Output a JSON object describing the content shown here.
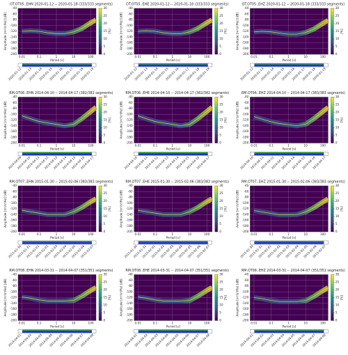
{
  "chart_data": [
    {
      "type": "line",
      "title": "OT.OT05..EHN  2020-01-12 -- 2020-01-18  (333/333 segments)",
      "xlabel": "Period [s]",
      "ylabel": "Amplitude [m²/s⁴/Hz] [dB]",
      "xlog": true,
      "xlim": [
        0.006,
        200
      ],
      "ylim": [
        -200,
        -40
      ],
      "xticks": [
        0.01,
        0.1,
        1,
        10,
        100
      ],
      "yticks": [
        -40,
        -60,
        -80,
        -100,
        -120,
        -140,
        -160,
        -180,
        -200
      ],
      "grid": true,
      "clim": [
        0,
        30
      ],
      "cticks": [
        0,
        5,
        10,
        15,
        20,
        25,
        30
      ],
      "clabel": "[%]",
      "x": [
        0.01,
        0.03,
        0.1,
        0.3,
        1,
        3,
        10,
        30,
        100,
        200
      ],
      "values": [
        -120,
        -118,
        -120,
        -125,
        -128,
        -128,
        -122,
        -110,
        -90,
        -80
      ],
      "time_labels": [
        "2020-01-12",
        "2020-01-13",
        "2020-01-14",
        "2020-01-15",
        "2020-01-16",
        "2020-01-17",
        "2020-01-18",
        "2020-01-19"
      ]
    },
    {
      "type": "line",
      "title": "OT.OT05..EHE  2020-01-12 -- 2020-01-18  (333/333 segments)",
      "xlabel": "Period [s]",
      "ylabel": "Amplitude [m²/s⁴/Hz] [dB]",
      "xlog": true,
      "xlim": [
        0.006,
        200
      ],
      "ylim": [
        -200,
        -40
      ],
      "xticks": [
        0.01,
        0.1,
        1,
        10,
        100
      ],
      "yticks": [
        -40,
        -60,
        -80,
        -100,
        -120,
        -140,
        -160,
        -180,
        -200
      ],
      "grid": true,
      "clim": [
        0,
        30
      ],
      "cticks": [
        0,
        5,
        10,
        15,
        20,
        25,
        30
      ],
      "clabel": "[%]",
      "x": [
        0.01,
        0.03,
        0.1,
        0.3,
        1,
        3,
        10,
        30,
        100,
        200
      ],
      "values": [
        -120,
        -118,
        -120,
        -125,
        -128,
        -128,
        -122,
        -110,
        -90,
        -80
      ],
      "time_labels": [
        "2020-01-12",
        "2020-01-13",
        "2020-01-14",
        "2020-01-15",
        "2020-01-16",
        "2020-01-17",
        "2020-01-18",
        "2020-01-19"
      ]
    },
    {
      "type": "line",
      "title": "OT.OT05..EHZ  2020-01-12 -- 2020-01-18  (333/333 segments)",
      "xlabel": "Period [s]",
      "ylabel": "Amplitude [m²/s⁴/Hz] [dB]",
      "xlog": true,
      "xlim": [
        0.006,
        200
      ],
      "ylim": [
        -200,
        -40
      ],
      "xticks": [
        0.01,
        0.1,
        1,
        10,
        100
      ],
      "yticks": [
        -40,
        -60,
        -80,
        -100,
        -120,
        -140,
        -160,
        -180,
        -200
      ],
      "grid": true,
      "clim": [
        0,
        30
      ],
      "cticks": [
        0,
        5,
        10,
        15,
        20,
        25,
        30
      ],
      "clabel": "[%]",
      "x": [
        0.01,
        0.03,
        0.1,
        0.3,
        1,
        3,
        10,
        30,
        100,
        200
      ],
      "values": [
        -122,
        -120,
        -122,
        -126,
        -130,
        -130,
        -124,
        -112,
        -92,
        -82
      ],
      "time_labels": [
        "2020-01-12",
        "2020-01-13",
        "2020-01-14",
        "2020-01-15",
        "2020-01-16",
        "2020-01-17",
        "2020-01-18",
        "2020-01-19"
      ]
    },
    {
      "type": "line",
      "title": "RM.OT06..EHN  2014-04-10 -- 2014-04-17  (382/382 segments)",
      "xlabel": "Period [s]",
      "ylabel": "Amplitude [m²/s⁴/Hz] [dB]",
      "xlog": true,
      "xlim": [
        0.006,
        200
      ],
      "ylim": [
        -200,
        -40
      ],
      "xticks": [
        0.01,
        0.1,
        1,
        10,
        100
      ],
      "yticks": [
        -40,
        -60,
        -80,
        -100,
        -120,
        -140,
        -160,
        -180,
        -200
      ],
      "grid": true,
      "clim": [
        0,
        30
      ],
      "cticks": [
        0,
        5,
        10,
        15,
        20,
        25,
        30
      ],
      "clabel": "[%]",
      "x": [
        0.01,
        0.03,
        0.1,
        0.3,
        1,
        3,
        10,
        30,
        100,
        200
      ],
      "values": [
        -105,
        -115,
        -125,
        -130,
        -135,
        -140,
        -135,
        -115,
        -90,
        -75
      ],
      "time_labels": [
        "2014-04-09",
        "2014-04-10",
        "2014-04-11",
        "2014-04-12",
        "2014-04-13",
        "2014-04-14",
        "2014-04-15",
        "2014-04-16",
        "2014-04-17"
      ]
    },
    {
      "type": "line",
      "title": "RM.OT06..EHE  2014-04-10 -- 2014-04-17  (382/382 segments)",
      "xlabel": "Period [s]",
      "ylabel": "Amplitude [m²/s⁴/Hz] [dB]",
      "xlog": true,
      "xlim": [
        0.006,
        200
      ],
      "ylim": [
        -200,
        -40
      ],
      "xticks": [
        0.01,
        0.1,
        1,
        10,
        100
      ],
      "yticks": [
        -40,
        -60,
        -80,
        -100,
        -120,
        -140,
        -160,
        -180,
        -200
      ],
      "grid": true,
      "clim": [
        0,
        30
      ],
      "cticks": [
        0,
        5,
        10,
        15,
        20,
        25,
        30
      ],
      "clabel": "[%]",
      "x": [
        0.01,
        0.03,
        0.1,
        0.3,
        1,
        3,
        10,
        30,
        100,
        200
      ],
      "values": [
        -105,
        -115,
        -125,
        -130,
        -135,
        -140,
        -135,
        -115,
        -90,
        -75
      ],
      "time_labels": [
        "2014-04-10",
        "2014-04-11",
        "2014-04-12",
        "2014-04-13",
        "2014-04-14",
        "2014-04-15",
        "2014-04-16",
        "2014-04-17"
      ]
    },
    {
      "type": "line",
      "title": "RM.OT06..EHZ  2014-04-10 -- 2014-04-17  (383/383 segments)",
      "xlabel": "Period [s]",
      "ylabel": "Amplitude [m²/s⁴/Hz] [dB]",
      "xlog": true,
      "xlim": [
        0.006,
        200
      ],
      "ylim": [
        -200,
        -40
      ],
      "xticks": [
        0.01,
        0.1,
        1,
        10,
        100
      ],
      "yticks": [
        -40,
        -60,
        -80,
        -100,
        -120,
        -140,
        -160,
        -180,
        -200
      ],
      "grid": true,
      "clim": [
        0,
        30
      ],
      "cticks": [
        0,
        5,
        10,
        15,
        20,
        25,
        30
      ],
      "clabel": "[%]",
      "x": [
        0.01,
        0.03,
        0.1,
        0.3,
        1,
        3,
        10,
        30,
        100,
        200
      ],
      "values": [
        -108,
        -117,
        -126,
        -132,
        -136,
        -140,
        -134,
        -115,
        -90,
        -76
      ],
      "time_labels": [
        "2014-04-10",
        "2014-04-11",
        "2014-04-12",
        "2014-04-13",
        "2014-04-14",
        "2014-04-15",
        "2014-04-16",
        "2014-04-17"
      ]
    },
    {
      "type": "line",
      "title": "RM.OT07..EHN  2015-01-30 -- 2015-02-06  (383/383 segments)",
      "xlabel": "Period [s]",
      "ylabel": "Amplitude [m²/s⁴/Hz] [dB]",
      "xlog": true,
      "xlim": [
        0.006,
        200
      ],
      "ylim": [
        -200,
        -40
      ],
      "xticks": [
        0.01,
        0.1,
        1,
        10,
        100
      ],
      "yticks": [
        -40,
        -60,
        -80,
        -100,
        -120,
        -140,
        -160,
        -180,
        -200
      ],
      "grid": true,
      "clim": [
        0,
        30
      ],
      "cticks": [
        0,
        5,
        10,
        15,
        20,
        25,
        30
      ],
      "clabel": "[%]",
      "x": [
        0.01,
        0.03,
        0.1,
        0.3,
        1,
        3,
        10,
        30,
        100,
        200
      ],
      "values": [
        -125,
        -130,
        -135,
        -140,
        -140,
        -140,
        -130,
        -115,
        -95,
        -85
      ],
      "time_labels": [
        "2015-01-30",
        "2015-01-31",
        "2015-02-01",
        "2015-02-02",
        "2015-02-03",
        "2015-02-04",
        "2015-02-05",
        "2015-02-06",
        "2015-02-07"
      ]
    },
    {
      "type": "line",
      "title": "RM.OT07..EHE  2015-01-30 -- 2015-02-06  (383/383 segments)",
      "xlabel": "Period [s]",
      "ylabel": "Amplitude [m²/s⁴/Hz] [dB]",
      "xlog": true,
      "xlim": [
        0.006,
        200
      ],
      "ylim": [
        -200,
        -40
      ],
      "xticks": [
        0.01,
        0.1,
        1,
        10,
        100
      ],
      "yticks": [
        -40,
        -60,
        -80,
        -100,
        -120,
        -140,
        -160,
        -180,
        -200
      ],
      "grid": true,
      "clim": [
        0,
        30
      ],
      "cticks": [
        0,
        5,
        10,
        15,
        20,
        25,
        30
      ],
      "clabel": "[%]",
      "x": [
        0.01,
        0.03,
        0.1,
        0.3,
        1,
        3,
        10,
        30,
        100,
        200
      ],
      "values": [
        -125,
        -130,
        -135,
        -140,
        -140,
        -140,
        -130,
        -115,
        -95,
        -85
      ],
      "time_labels": [
        "2015-01-30",
        "2015-01-31",
        "2015-02-01",
        "2015-02-02",
        "2015-02-03",
        "2015-02-04",
        "2015-02-05",
        "2015-02-06",
        "2015-02-07"
      ]
    },
    {
      "type": "line",
      "title": "RM.OT07..EHZ  2015-01-30 -- 2015-02-06  (383/383 segments)",
      "xlabel": "Period [s]",
      "ylabel": "Amplitude [m²/s⁴/Hz] [dB]",
      "xlog": true,
      "xlim": [
        0.006,
        200
      ],
      "ylim": [
        -200,
        -40
      ],
      "xticks": [
        0.01,
        0.1,
        1,
        10,
        100
      ],
      "yticks": [
        -40,
        -60,
        -80,
        -100,
        -120,
        -140,
        -160,
        -180,
        -200
      ],
      "grid": true,
      "clim": [
        0,
        30
      ],
      "cticks": [
        0,
        5,
        10,
        15,
        20,
        25,
        30
      ],
      "clabel": "[%]",
      "x": [
        0.01,
        0.03,
        0.1,
        0.3,
        1,
        3,
        10,
        30,
        100,
        200
      ],
      "values": [
        -126,
        -131,
        -136,
        -141,
        -141,
        -140,
        -131,
        -116,
        -96,
        -86
      ],
      "time_labels": [
        "2015-01-30",
        "2015-01-31",
        "2015-02-01",
        "2015-02-02",
        "2015-02-03",
        "2015-02-04",
        "2015-02-05",
        "2015-02-06",
        "2015-02-07"
      ]
    },
    {
      "type": "line",
      "title": "RM.OT08..EHN  2014-03-31 -- 2014-04-07  (351/351 segments)",
      "xlabel": "Period [s]",
      "ylabel": "Amplitude [m²/s⁴/Hz] [dB]",
      "xlog": true,
      "xlim": [
        0.006,
        200
      ],
      "ylim": [
        -200,
        -40
      ],
      "xticks": [
        0.01,
        0.1,
        1,
        10,
        100
      ],
      "yticks": [
        -40,
        -60,
        -80,
        -100,
        -120,
        -140,
        -160,
        -180,
        -200
      ],
      "grid": true,
      "clim": [
        0,
        30
      ],
      "cticks": [
        0,
        5,
        10,
        15,
        20,
        25,
        30
      ],
      "clabel": "[%]",
      "x": [
        0.01,
        0.03,
        0.1,
        0.3,
        1,
        3,
        10,
        30,
        100,
        200
      ],
      "values": [
        -118,
        -122,
        -128,
        -132,
        -132,
        -132,
        -130,
        -115,
        -95,
        -85
      ],
      "time_labels": [
        "2014-04-01",
        "2014-04-02",
        "2014-04-03",
        "2014-04-04",
        "2014-04-05",
        "2014-04-06",
        "2014-04-07",
        "2014-04-08"
      ]
    },
    {
      "type": "line",
      "title": "RM.OT08..EHE  2014-03-31 -- 2014-04-07  (351/351 segments)",
      "xlabel": "Period [s]",
      "ylabel": "Amplitude [m²/s⁴/Hz] [dB]",
      "xlog": true,
      "xlim": [
        0.006,
        200
      ],
      "ylim": [
        -200,
        -40
      ],
      "xticks": [
        0.01,
        0.1,
        1,
        10,
        100
      ],
      "yticks": [
        -40,
        -60,
        -80,
        -100,
        -120,
        -140,
        -160,
        -180,
        -200
      ],
      "grid": true,
      "clim": [
        0,
        30
      ],
      "cticks": [
        0,
        5,
        10,
        15,
        20,
        25,
        30
      ],
      "clabel": "[%]",
      "x": [
        0.01,
        0.03,
        0.1,
        0.3,
        1,
        3,
        10,
        30,
        100,
        200
      ],
      "values": [
        -118,
        -122,
        -128,
        -132,
        -132,
        -132,
        -130,
        -115,
        -95,
        -85
      ],
      "time_labels": [
        "2014-04-01",
        "2014-04-02",
        "2014-04-03",
        "2014-04-04",
        "2014-04-05",
        "2014-04-06",
        "2014-04-07",
        "2014-04-08"
      ]
    },
    {
      "type": "line",
      "title": "RM.OT08..EHZ  2014-03-31 -- 2014-04-07  (351/351 segments)",
      "xlabel": "Period [s]",
      "ylabel": "Amplitude [m²/s⁴/Hz] [dB]",
      "xlog": true,
      "xlim": [
        0.006,
        200
      ],
      "ylim": [
        -200,
        -40
      ],
      "xticks": [
        0.01,
        0.1,
        1,
        10,
        100
      ],
      "yticks": [
        -40,
        -60,
        -80,
        -100,
        -120,
        -140,
        -160,
        -180,
        -200
      ],
      "grid": true,
      "clim": [
        0,
        30
      ],
      "cticks": [
        0,
        5,
        10,
        15,
        20,
        25,
        30
      ],
      "clabel": "[%]",
      "x": [
        0.01,
        0.03,
        0.1,
        0.3,
        1,
        3,
        10,
        30,
        100,
        200
      ],
      "values": [
        -120,
        -124,
        -130,
        -134,
        -134,
        -134,
        -131,
        -116,
        -96,
        -86
      ],
      "time_labels": [
        "2014-04-01",
        "2014-04-02",
        "2014-04-03",
        "2014-04-04",
        "2014-04-05",
        "2014-04-06",
        "2014-04-07",
        "2014-04-08"
      ]
    }
  ]
}
